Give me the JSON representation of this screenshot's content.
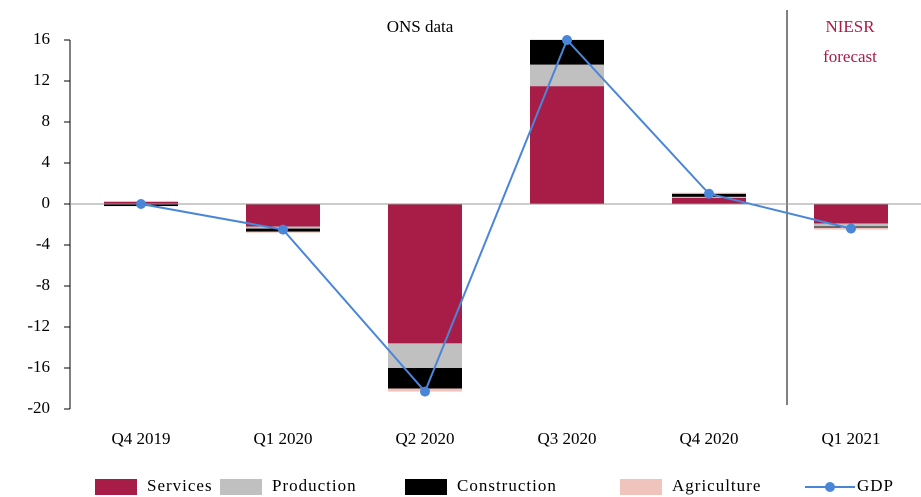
{
  "chart_data": {
    "type": "bar",
    "annotations": [
      "ONS data",
      "NIESR",
      "forecast"
    ],
    "categories": [
      "Q4 2019",
      "Q1 2020",
      "Q2 2020",
      "Q3 2020",
      "Q4 2020",
      "Q1 2021"
    ],
    "series": [
      {
        "name": "Services",
        "color": "#a81c48",
        "values": [
          0.2,
          -2.2,
          -13.6,
          11.5,
          0.6,
          -1.9
        ]
      },
      {
        "name": "Production",
        "color": "#c0c0c0",
        "values": [
          0.05,
          -0.2,
          -2.4,
          2.1,
          0.1,
          -0.3
        ]
      },
      {
        "name": "Construction",
        "color": "#000000",
        "values": [
          -0.2,
          -0.3,
          -2.0,
          2.4,
          0.3,
          -0.1
        ]
      },
      {
        "name": "Agriculture",
        "color": "#f0c4bc",
        "values": [
          0.05,
          -0.1,
          -0.3,
          0.05,
          0.1,
          -0.2
        ]
      },
      {
        "name": "GDP",
        "color": "#4a86d8",
        "type": "line",
        "values": [
          0.0,
          -2.5,
          -18.3,
          16.0,
          1.0,
          -2.4
        ]
      }
    ],
    "ylim": [
      -20,
      16
    ],
    "yticks": [
      -20,
      -16,
      -12,
      -8,
      -4,
      0,
      4,
      8,
      12,
      16
    ]
  }
}
